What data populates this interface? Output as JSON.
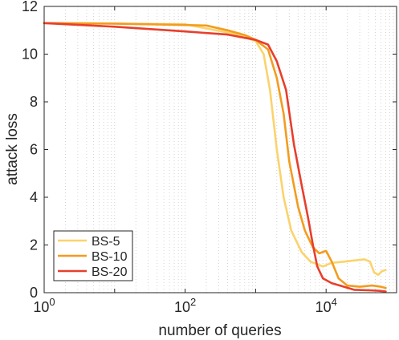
{
  "chart_data": {
    "type": "line",
    "xlabel": "number of queries",
    "ylabel": "attack loss",
    "xscale": "log",
    "xlim": [
      1,
      100000
    ],
    "ylim": [
      0,
      12
    ],
    "grid": "x-axis minor and major dotted",
    "legend_position": "bottom-left",
    "x_ticks": [
      {
        "value": 1,
        "base": "10",
        "exp": "0"
      },
      {
        "value": 100,
        "base": "10",
        "exp": "2"
      },
      {
        "value": 10000,
        "base": "10",
        "exp": "4"
      }
    ],
    "y_ticks": [
      {
        "value": 0,
        "label": "0"
      },
      {
        "value": 2,
        "label": "2"
      },
      {
        "value": 4,
        "label": "4"
      },
      {
        "value": 6,
        "label": "6"
      },
      {
        "value": 8,
        "label": "8"
      },
      {
        "value": 10,
        "label": "10"
      },
      {
        "value": 12,
        "label": "12"
      }
    ],
    "series": [
      {
        "name": "BS-5",
        "color": "#fbd36b",
        "points": [
          [
            1,
            11.3
          ],
          [
            10,
            11.28
          ],
          [
            100,
            11.25
          ],
          [
            500,
            10.85
          ],
          [
            1000,
            10.55
          ],
          [
            1300,
            10.0
          ],
          [
            1600,
            8.5
          ],
          [
            2000,
            6.0
          ],
          [
            2500,
            4.0
          ],
          [
            3200,
            2.6
          ],
          [
            4500,
            1.7
          ],
          [
            6000,
            1.3
          ],
          [
            9000,
            1.1
          ],
          [
            12000,
            1.25
          ],
          [
            18000,
            1.3
          ],
          [
            25000,
            1.35
          ],
          [
            35000,
            1.4
          ],
          [
            42000,
            1.3
          ],
          [
            48000,
            0.85
          ],
          [
            55000,
            0.75
          ],
          [
            62000,
            0.9
          ],
          [
            70000,
            0.95
          ]
        ]
      },
      {
        "name": "BS-10",
        "color": "#f39c1e",
        "points": [
          [
            1,
            11.3
          ],
          [
            10,
            11.28
          ],
          [
            100,
            11.22
          ],
          [
            200,
            11.2
          ],
          [
            400,
            11.0
          ],
          [
            700,
            10.8
          ],
          [
            1000,
            10.6
          ],
          [
            1500,
            10.2
          ],
          [
            2000,
            9.0
          ],
          [
            2500,
            7.5
          ],
          [
            3000,
            5.5
          ],
          [
            4000,
            3.6
          ],
          [
            5000,
            2.6
          ],
          [
            6500,
            1.9
          ],
          [
            8000,
            1.65
          ],
          [
            10000,
            1.75
          ],
          [
            12000,
            1.3
          ],
          [
            15000,
            0.6
          ],
          [
            20000,
            0.3
          ],
          [
            30000,
            0.25
          ],
          [
            45000,
            0.3
          ],
          [
            60000,
            0.25
          ],
          [
            70000,
            0.2
          ]
        ]
      },
      {
        "name": "BS-20",
        "color": "#e83f2b",
        "points": [
          [
            1,
            11.3
          ],
          [
            10,
            11.15
          ],
          [
            100,
            10.95
          ],
          [
            400,
            10.82
          ],
          [
            1000,
            10.6
          ],
          [
            1500,
            10.4
          ],
          [
            2000,
            9.7
          ],
          [
            2700,
            8.5
          ],
          [
            3500,
            6.2
          ],
          [
            4500,
            4.5
          ],
          [
            5500,
            3.2
          ],
          [
            6500,
            2.0
          ],
          [
            7500,
            1.1
          ],
          [
            9000,
            0.6
          ],
          [
            12000,
            0.4
          ],
          [
            18000,
            0.25
          ],
          [
            25000,
            0.12
          ],
          [
            40000,
            0.1
          ],
          [
            55000,
            0.08
          ],
          [
            70000,
            0.05
          ]
        ]
      }
    ]
  }
}
